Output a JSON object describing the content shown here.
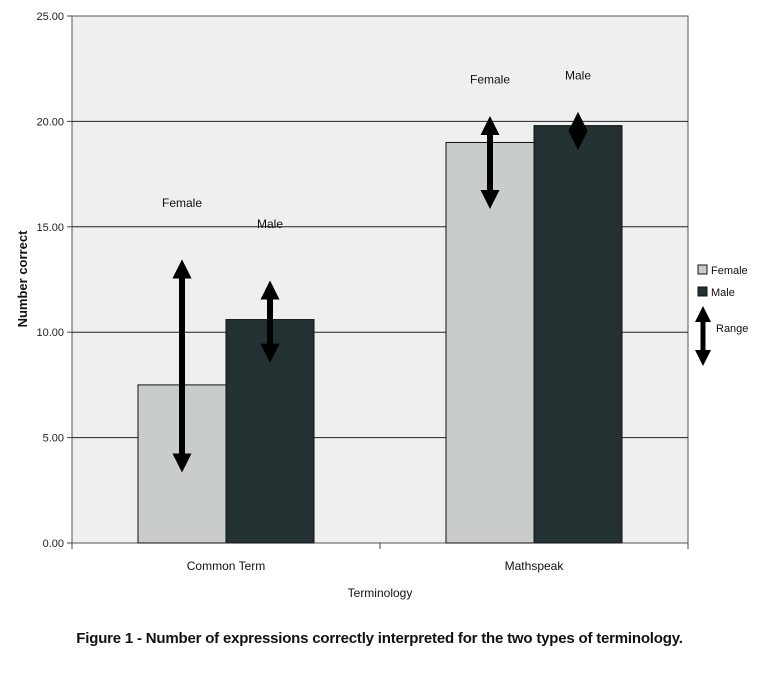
{
  "chart_data": {
    "type": "bar",
    "title": "",
    "xlabel": "Terminology",
    "ylabel": "Number correct",
    "ylim": [
      0,
      25
    ],
    "y_ticks": [
      "0.00",
      "5.00",
      "10.00",
      "15.00",
      "20.00",
      "25.00"
    ],
    "y_tick_values": [
      0,
      5,
      10,
      15,
      20,
      25
    ],
    "categories": [
      "Common Term",
      "Mathspeak"
    ],
    "series": [
      {
        "name": "Female",
        "values": [
          7.5,
          19.0
        ],
        "range": [
          [
            3.8,
            13.0
          ],
          [
            16.3,
            19.8
          ]
        ],
        "color": "#c8cdca"
      },
      {
        "name": "Male",
        "values": [
          10.6,
          19.8
        ],
        "range": [
          [
            9.0,
            12.0
          ],
          [
            19.1,
            20.0
          ]
        ],
        "color": "#233133"
      }
    ],
    "bar_labels": [
      [
        "Female",
        "Male"
      ],
      [
        "Female",
        "Male"
      ]
    ],
    "legend": {
      "placement": "right",
      "entries": [
        "Female",
        "Male"
      ],
      "range_label": "Range"
    },
    "grid": true,
    "plot_background": "#efefef"
  },
  "caption": "Figure 1 - Number of expressions correctly interpreted for the two types of terminology."
}
